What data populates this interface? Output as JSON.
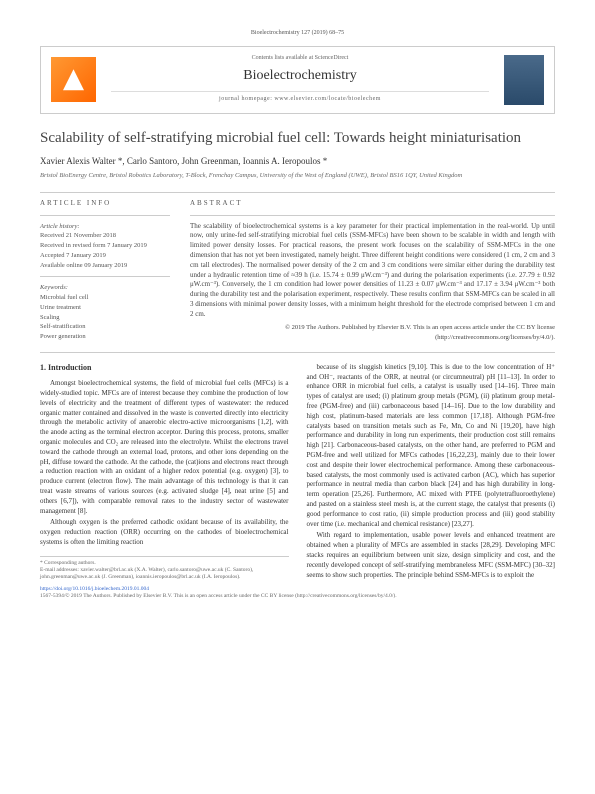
{
  "top_header": "Bioelectrochemistry 127 (2019) 68–75",
  "header": {
    "avail": "Contents lists available at ScienceDirect",
    "journal": "Bioelectrochemistry",
    "homepage": "journal homepage: www.elsevier.com/locate/bioelechem"
  },
  "title": "Scalability of self-stratifying microbial fuel cell: Towards height miniaturisation",
  "authors": "Xavier Alexis Walter *, Carlo Santoro, John Greenman, Ioannis A. Ieropoulos *",
  "affiliation": "Bristol BioEnergy Centre, Bristol Robotics Laboratory, T-Block, Frenchay Campus, University of the West of England (UWE), Bristol BS16 1QY, United Kingdom",
  "info": {
    "article_head": "ARTICLE INFO",
    "history_head": "Article history:",
    "history": "Received 21 November 2018\nReceived in revised form 7 January 2019\nAccepted 7 January 2019\nAvailable online 09 January 2019",
    "keywords_head": "Keywords:",
    "keywords": "Microbial fuel cell\nUrine treatment\nScaling\nSelf-stratification\nPower generation"
  },
  "abstract": {
    "head": "ABSTRACT",
    "text": "The scalability of bioelectrochemical systems is a key parameter for their practical implementation in the real-world. Up until now, only urine-fed self-stratifying microbial fuel cells (SSM-MFCs) have been shown to be scalable in width and length with limited power density losses. For practical reasons, the present work focuses on the scalability of SSM-MFCs in the one dimension that has not yet been investigated, namely height. Three different height conditions were considered (1 cm, 2 cm and 3 cm tall electrodes). The normalised power density of the 2 cm and 3 cm conditions were similar either during the durability test under a hydraulic retention time of ≈39 h (i.e. 15.74 ± 0.99 μW.cm⁻³) and during the polarisation experiments (i.e. 27.79 ± 0.92 μW.cm⁻³). Conversely, the 1 cm condition had lower power densities of 11.23 ± 0.07 μW.cm⁻³ and 17.17 ± 3.94 μW.cm⁻³ both during the durability test and the polarisation experiment, respectively. These results confirm that SSM-MFCs can be scaled in all 3 dimensions with minimal power density losses, with a minimum height threshold for the electrode comprised between 1 cm and 2 cm.",
    "copyright": "© 2019 The Authors. Published by Elsevier B.V. This is an open access article under the CC BY license (http://creativecommons.org/licenses/by/4.0/)."
  },
  "section1": {
    "head": "1. Introduction",
    "p1": "Amongst bioelectrochemical systems, the field of microbial fuel cells (MFCs) is a widely-studied topic. MFCs are of interest because they combine the production of low levels of electricity and the treatment of different types of wastewater: the reduced organic matter contained and dissolved in the waste is converted directly into electricity through the metabolic activity of anaerobic electro-active microorganisms [1,2], with the anode acting as the terminal electron acceptor. During this process, protons, smaller organic molecules and CO₂ are released into the electrolyte. Whilst the electrons travel toward the cathode through an external load, protons, and other ions depending on the pH, diffuse toward the cathode. At the cathode, the (cat)ions and electrons react through a reduction reaction with an oxidant of a higher redox potential (e.g. oxygen) [3], to produce current (electron flow). The main advantage of this technology is that it can treat waste streams of various sources (e.g. activated sludge [4], neat urine [5] and others [6,7]), with comparable removal rates to the industry sector of wastewater management [8].",
    "p2": "Although oxygen is the preferred cathodic oxidant because of its availability, the oxygen reduction reaction (ORR) occurring on the cathodes of bioelectrochemical systems is often the limiting reaction"
  },
  "col2": {
    "p1": "because of its sluggish kinetics [9,10]. This is due to the low concentration of H⁺ and OH⁻, reactants of the ORR, at neutral (or circumneutral) pH [11–13]. In order to enhance ORR in microbial fuel cells, a catalyst is usually used [14–16]. Three main types of catalyst are used; (i) platinum group metals (PGM), (ii) platinum group metal-free (PGM-free) and (iii) carbonaceous based [14–16]. Due to the low durability and high cost, platinum-based materials are less common [17,18]. Although PGM-free catalysts based on transition metals such as Fe, Mn, Co and Ni [19,20], have high performance and durability in long run experiments, their production cost still remains high [21]. Carbonaceous-based catalysts, on the other hand, are preferred to PGM and PGM-free and well utilized for MFCs cathodes [16,22,23], mainly due to their lower cost and despite their lower electrochemical performance. Among these carbonaceous-based catalysts, the most commonly used is activated carbon (AC), which has superior performance in neutral media than carbon black [24] and has high durability in long-term operation [25,26]. Furthermore, AC mixed with PTFE (polytetrafluoroethylene) and pasted on a stainless steel mesh is, at the current stage, the catalyst that presents (i) good performance to cost ratio, (ii) simple production process and (iii) good stability over time (i.e. mechanical and chemical resistance) [23,27].",
    "p2": "With regard to implementation, usable power levels and enhanced treatment are obtained when a plurality of MFCs are assembled in stacks [28,29]. Developing MFC stacks requires an equilibrium between unit size, design simplicity and cost, and the recently developed concept of self-stratifying membraneless MFC (SSM-MFC) [30–32] seems to show such properties. The principle behind SSM-MFCs is to exploit the"
  },
  "footer": {
    "corr": "* Corresponding authors.",
    "emails": "E-mail addresses: xavier.walter@brl.ac.uk (X.A. Walter), carlo.santoro@uwe.ac.uk (C. Santoro), john.greenman@uwe.ac.uk (J. Greenman), ioannis.ieropoulos@brl.ac.uk (I.A. Ieropoulos).",
    "doi": "https://doi.org/10.1016/j.bioelechem.2019.01.004",
    "copy": "1567-5394/© 2019 The Authors. Published by Elsevier B.V. This is an open access article under the CC BY license (http://creativecommons.org/licenses/by/4.0/)."
  }
}
